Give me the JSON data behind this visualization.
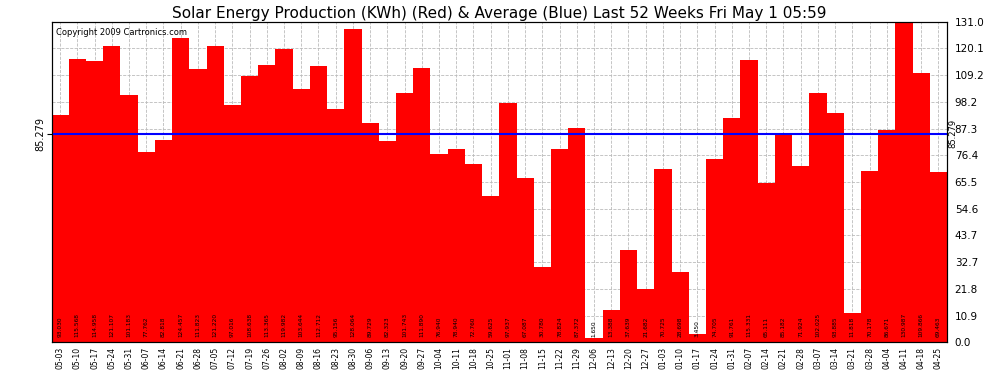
{
  "title": "Solar Energy Production (KWh) (Red) & Average (Blue) Last 52 Weeks Fri May 1 05:59",
  "copyright": "Copyright 2009 Cartronics.com",
  "average_line": 85.279,
  "bar_color": "#ff0000",
  "avg_line_color": "#0000ff",
  "background_color": "#ffffff",
  "grid_color": "#bbbbbb",
  "title_fontsize": 11,
  "ylabel_right_values": [
    131.0,
    120.1,
    109.2,
    98.2,
    87.3,
    76.4,
    65.5,
    54.6,
    43.7,
    32.7,
    21.8,
    10.9,
    0.0
  ],
  "categories": [
    "05-03",
    "05-10",
    "05-17",
    "05-24",
    "05-31",
    "06-07",
    "06-14",
    "06-21",
    "06-28",
    "07-05",
    "07-12",
    "07-19",
    "07-26",
    "08-02",
    "08-09",
    "08-16",
    "08-23",
    "08-30",
    "09-06",
    "09-13",
    "09-20",
    "09-27",
    "10-04",
    "10-11",
    "10-18",
    "10-25",
    "11-01",
    "11-08",
    "11-15",
    "11-22",
    "11-29",
    "12-06",
    "12-13",
    "12-20",
    "12-27",
    "01-03",
    "01-10",
    "01-17",
    "01-24",
    "01-31",
    "02-07",
    "02-14",
    "02-21",
    "02-28",
    "03-07",
    "03-14",
    "03-21",
    "03-28",
    "04-04",
    "04-11",
    "04-18",
    "04-25"
  ],
  "values": [
    93.03,
    115.568,
    114.958,
    121.107,
    101.183,
    77.762,
    82.818,
    124.457,
    111.823,
    121.22,
    97.016,
    108.638,
    113.365,
    119.982,
    103.644,
    112.712,
    95.156,
    128.064,
    89.729,
    82.323,
    101.743,
    111.89,
    76.94,
    78.94,
    72.76,
    59.625,
    97.937,
    67.087,
    30.78,
    78.824,
    87.372,
    1.65,
    13.388,
    37.639,
    21.682,
    70.725,
    28.698,
    3.45,
    74.705,
    91.761,
    115.331,
    65.111,
    85.182,
    71.924,
    102.025,
    93.885,
    11.818,
    70.178,
    86.671,
    130.987,
    109.866,
    69.463
  ],
  "bar_values_text": [
    "93.030",
    "115.568",
    "114.958",
    "121.107",
    "101.183",
    "77.762",
    "82.818",
    "124.457",
    "111.823",
    "121.220",
    "97.016",
    "108.638",
    "113.365",
    "119.982",
    "103.644",
    "112.712",
    "95.156",
    "128.064",
    "89.729",
    "82.323",
    "101.743",
    "111.890",
    "76.940",
    "78.940",
    "72.760",
    "59.625",
    "97.937",
    "67.087",
    "30.780",
    "78.824",
    "87.372",
    "1.650",
    "13.388",
    "37.639",
    "21.682",
    "70.725",
    "28.698",
    "3.450",
    "74.705",
    "91.761",
    "115.331",
    "65.111",
    "85.182",
    "71.924",
    "102.025",
    "93.885",
    "11.818",
    "70.178",
    "86.671",
    "130.987",
    "109.866",
    "69.463"
  ],
  "ymax": 131.0,
  "ymin": 0.0,
  "ytick_interval": 10.9
}
